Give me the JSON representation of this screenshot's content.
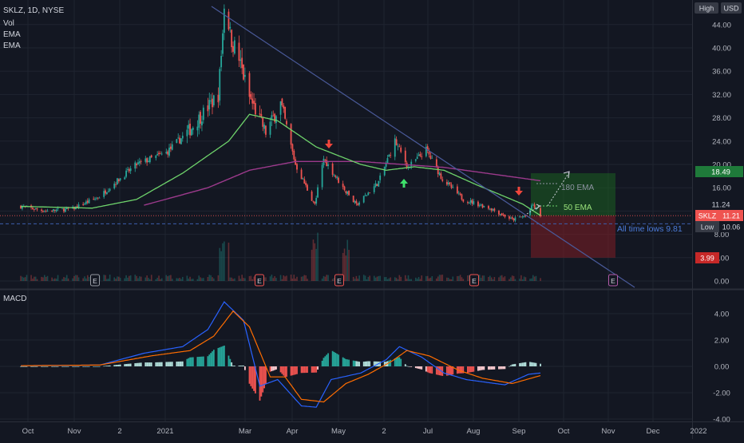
{
  "header": {
    "symbol_line": "SKLZ, 1D, NYSE",
    "indicators": [
      "Vol",
      "EMA",
      "EMA"
    ],
    "high_label": "High",
    "currency": "USD"
  },
  "price_axis": {
    "ticks": [
      0,
      4,
      8,
      12,
      16,
      20,
      24,
      28,
      32,
      36,
      40,
      44
    ],
    "labels": [
      "0.00",
      "4.00",
      "8.00",
      "12.00",
      "16.00",
      "20.00",
      "24.00",
      "28.00",
      "32.00",
      "36.00",
      "40.00",
      "44.00"
    ]
  },
  "macd_axis": {
    "ticks": [
      -4,
      -2,
      0,
      2,
      4
    ],
    "labels": [
      "-4.00",
      "-2.00",
      "0.00",
      "2.00",
      "4.00"
    ]
  },
  "time_axis": {
    "labels": [
      "Oct",
      "Nov",
      "2",
      "2021",
      "Mar",
      "Apr",
      "May",
      "2",
      "Jul",
      "Aug",
      "Sep",
      "Oct",
      "Nov",
      "Dec",
      "2022"
    ]
  },
  "badges": {
    "target": "18.49",
    "ema50": "11.24",
    "sklz_label": "SKLZ",
    "last": "11.21",
    "low_label": "Low",
    "low_value": "10.06",
    "stop": "3.99"
  },
  "annotations": {
    "ema180_label": "180 EMA",
    "ema50_label": "50 EMA",
    "ath_lows": "All time lows 9.81",
    "earnings_marker": "E"
  },
  "macd_panel": {
    "title": "MACD"
  },
  "colors": {
    "background": "#131722",
    "grid": "#1f2430",
    "up": "#26a69a",
    "down": "#ef5350",
    "ema50": "#6ed36b",
    "ema180": "#9c3a8c",
    "macd": "#2962ff",
    "signal": "#ff6d00",
    "trendline": "#4a5a9a",
    "target_zone": "#1b5e20",
    "stop_zone": "#7f1d24"
  },
  "chart_data": {
    "type": "candlestick",
    "symbol": "SKLZ",
    "timeframe": "1D",
    "exchange": "NYSE",
    "ylim": [
      0,
      46
    ],
    "price_anchors": [
      {
        "date": "2020-09-28",
        "price": 12.8
      },
      {
        "date": "2020-10-15",
        "price": 12.0
      },
      {
        "date": "2020-11-02",
        "price": 12.4
      },
      {
        "date": "2020-11-20",
        "price": 14.5
      },
      {
        "date": "2020-12-01",
        "price": 17.0
      },
      {
        "date": "2020-12-15",
        "price": 20.0
      },
      {
        "date": "2021-01-04",
        "price": 22.0
      },
      {
        "date": "2021-01-20",
        "price": 26.0
      },
      {
        "date": "2021-02-08",
        "price": 32.0
      },
      {
        "date": "2021-02-12",
        "price": 45.0
      },
      {
        "date": "2021-02-22",
        "price": 38.0
      },
      {
        "date": "2021-03-01",
        "price": 31.5
      },
      {
        "date": "2021-03-12",
        "price": 25.5
      },
      {
        "date": "2021-03-22",
        "price": 30.5
      },
      {
        "date": "2021-04-01",
        "price": 20.0
      },
      {
        "date": "2021-04-14",
        "price": 13.0
      },
      {
        "date": "2021-04-20",
        "price": 21.0
      },
      {
        "date": "2021-05-03",
        "price": 16.0
      },
      {
        "date": "2021-05-12",
        "price": 13.0
      },
      {
        "date": "2021-05-27",
        "price": 17.0
      },
      {
        "date": "2021-06-07",
        "price": 24.0
      },
      {
        "date": "2021-06-16",
        "price": 19.5
      },
      {
        "date": "2021-06-28",
        "price": 22.5
      },
      {
        "date": "2021-07-09",
        "price": 17.5
      },
      {
        "date": "2021-07-23",
        "price": 14.0
      },
      {
        "date": "2021-08-10",
        "price": 12.5
      },
      {
        "date": "2021-08-25",
        "price": 10.5
      },
      {
        "date": "2021-09-03",
        "price": 11.2
      },
      {
        "date": "2021-09-08",
        "price": 13.0
      },
      {
        "date": "2021-09-13",
        "price": 11.21
      }
    ],
    "ema50_anchors": [
      {
        "date": "2020-09-28",
        "price": 12.8
      },
      {
        "date": "2020-11-15",
        "price": 12.5
      },
      {
        "date": "2020-12-15",
        "price": 14.0
      },
      {
        "date": "2021-01-15",
        "price": 18.5
      },
      {
        "date": "2021-02-15",
        "price": 24.0
      },
      {
        "date": "2021-03-01",
        "price": 28.6
      },
      {
        "date": "2021-03-20",
        "price": 27.5
      },
      {
        "date": "2021-04-15",
        "price": 23.0
      },
      {
        "date": "2021-05-15",
        "price": 20.0
      },
      {
        "date": "2021-06-01",
        "price": 19.0
      },
      {
        "date": "2021-06-20",
        "price": 19.6
      },
      {
        "date": "2021-07-10",
        "price": 19.0
      },
      {
        "date": "2021-08-01",
        "price": 16.5
      },
      {
        "date": "2021-09-01",
        "price": 13.2
      },
      {
        "date": "2021-09-13",
        "price": 11.24
      }
    ],
    "ema180_anchors": [
      {
        "date": "2020-12-20",
        "price": 13.0
      },
      {
        "date": "2021-02-01",
        "price": 16.0
      },
      {
        "date": "2021-03-01",
        "price": 19.0
      },
      {
        "date": "2021-04-01",
        "price": 20.5
      },
      {
        "date": "2021-05-15",
        "price": 20.5
      },
      {
        "date": "2021-07-10",
        "price": 19.5
      },
      {
        "date": "2021-09-13",
        "price": 17.2
      }
    ],
    "long_position": {
      "entry": 11.21,
      "target": 18.49,
      "stop": 3.99
    },
    "all_time_low": 9.81,
    "earnings_dates": [
      "2020-11-16",
      "2021-03-01",
      "2021-05-04",
      "2021-08-05",
      "2021-11-08"
    ],
    "macd": {
      "ylim": [
        -4,
        5.5
      ],
      "macd_anchors": [
        {
          "date": "2020-09-28",
          "v": 0.05
        },
        {
          "date": "2020-11-20",
          "v": 0.1
        },
        {
          "date": "2020-12-20",
          "v": 1.0
        },
        {
          "date": "2021-01-15",
          "v": 1.5
        },
        {
          "date": "2021-02-01",
          "v": 2.8
        },
        {
          "date": "2021-02-12",
          "v": 4.9
        },
        {
          "date": "2021-02-25",
          "v": 3.5
        },
        {
          "date": "2021-03-08",
          "v": -1.5
        },
        {
          "date": "2021-03-20",
          "v": -1.0
        },
        {
          "date": "2021-04-05",
          "v": -3.0
        },
        {
          "date": "2021-04-15",
          "v": -3.1
        },
        {
          "date": "2021-04-25",
          "v": -1.0
        },
        {
          "date": "2021-05-15",
          "v": -0.5
        },
        {
          "date": "2021-06-01",
          "v": 0.5
        },
        {
          "date": "2021-06-10",
          "v": 1.5
        },
        {
          "date": "2021-06-25",
          "v": 0.7
        },
        {
          "date": "2021-07-10",
          "v": -0.5
        },
        {
          "date": "2021-07-25",
          "v": -1.0
        },
        {
          "date": "2021-08-20",
          "v": -1.4
        },
        {
          "date": "2021-09-05",
          "v": -0.6
        },
        {
          "date": "2021-09-13",
          "v": -0.5
        }
      ],
      "signal_anchors": [
        {
          "date": "2020-09-28",
          "v": 0.05
        },
        {
          "date": "2020-11-20",
          "v": 0.1
        },
        {
          "date": "2020-12-25",
          "v": 0.8
        },
        {
          "date": "2021-01-20",
          "v": 1.2
        },
        {
          "date": "2021-02-05",
          "v": 2.3
        },
        {
          "date": "2021-02-18",
          "v": 4.2
        },
        {
          "date": "2021-03-01",
          "v": 3.0
        },
        {
          "date": "2021-03-15",
          "v": -0.8
        },
        {
          "date": "2021-03-25",
          "v": -0.8
        },
        {
          "date": "2021-04-05",
          "v": -2.5
        },
        {
          "date": "2021-04-20",
          "v": -2.7
        },
        {
          "date": "2021-05-05",
          "v": -1.3
        },
        {
          "date": "2021-05-20",
          "v": -0.6
        },
        {
          "date": "2021-06-05",
          "v": 0.4
        },
        {
          "date": "2021-06-15",
          "v": 1.2
        },
        {
          "date": "2021-06-30",
          "v": 0.8
        },
        {
          "date": "2021-07-20",
          "v": -0.3
        },
        {
          "date": "2021-08-05",
          "v": -0.9
        },
        {
          "date": "2021-08-25",
          "v": -1.3
        },
        {
          "date": "2021-09-13",
          "v": -0.7
        }
      ]
    }
  }
}
